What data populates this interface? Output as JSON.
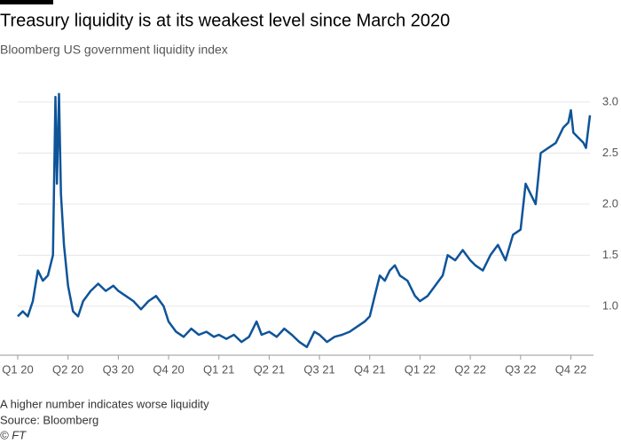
{
  "chart_data": {
    "type": "line",
    "title": "Treasury liquidity is at its weakest level since March 2020",
    "subtitle": "Bloomberg US government liquidity index",
    "note": "A higher number indicates worse liquidity",
    "source": "Source: Bloomberg",
    "credit": "© FT",
    "xlim": [
      0,
      11.45
    ],
    "xticks": [
      {
        "value": 0,
        "label": "Q1 20"
      },
      {
        "value": 1,
        "label": "Q2 20"
      },
      {
        "value": 2,
        "label": "Q3 20"
      },
      {
        "value": 3,
        "label": "Q4 20"
      },
      {
        "value": 4,
        "label": "Q1 21"
      },
      {
        "value": 5,
        "label": "Q2 21"
      },
      {
        "value": 6,
        "label": "Q3 21"
      },
      {
        "value": 7,
        "label": "Q4 21"
      },
      {
        "value": 8,
        "label": "Q1 22"
      },
      {
        "value": 9,
        "label": "Q2 22"
      },
      {
        "value": 10,
        "label": "Q3 22"
      },
      {
        "value": 11,
        "label": "Q4 22"
      }
    ],
    "ylim": [
      0.52,
      3.26
    ],
    "yticks": [
      {
        "value": 1,
        "label": "1.0"
      },
      1.5,
      {
        "value": 2,
        "label": "2.0"
      },
      2.5,
      {
        "value": 3,
        "label": "3.0"
      }
    ],
    "grid": true,
    "series": [
      {
        "color": "#0f5499",
        "x": [
          0,
          0.1,
          0.2,
          0.3,
          0.4,
          0.5,
          0.6,
          0.7,
          0.75,
          0.78,
          0.82,
          0.86,
          0.92,
          1.0,
          1.1,
          1.2,
          1.3,
          1.45,
          1.6,
          1.75,
          1.9,
          2.0,
          2.15,
          2.3,
          2.45,
          2.6,
          2.75,
          2.9,
          3.0,
          3.15,
          3.3,
          3.45,
          3.6,
          3.75,
          3.9,
          4.0,
          4.15,
          4.3,
          4.45,
          4.6,
          4.75,
          4.85,
          5.0,
          5.15,
          5.3,
          5.45,
          5.6,
          5.75,
          5.9,
          6.0,
          6.15,
          6.3,
          6.45,
          6.6,
          6.75,
          6.9,
          7.0,
          7.1,
          7.2,
          7.3,
          7.4,
          7.5,
          7.6,
          7.75,
          7.9,
          8.0,
          8.15,
          8.3,
          8.45,
          8.55,
          8.7,
          8.85,
          9.0,
          9.1,
          9.25,
          9.4,
          9.55,
          9.7,
          9.85,
          10.0,
          10.1,
          10.2,
          10.3,
          10.4,
          10.55,
          10.7,
          10.85,
          10.95,
          11.0,
          11.05,
          11.15,
          11.25,
          11.3,
          11.38
        ],
        "values": [
          0.9,
          0.95,
          0.9,
          1.05,
          1.35,
          1.25,
          1.3,
          1.5,
          3.05,
          2.2,
          3.08,
          2.1,
          1.6,
          1.2,
          0.95,
          0.9,
          1.05,
          1.15,
          1.22,
          1.15,
          1.2,
          1.15,
          1.1,
          1.05,
          0.97,
          1.05,
          1.1,
          1.0,
          0.85,
          0.75,
          0.7,
          0.78,
          0.72,
          0.75,
          0.7,
          0.72,
          0.68,
          0.72,
          0.65,
          0.7,
          0.85,
          0.72,
          0.75,
          0.7,
          0.78,
          0.72,
          0.65,
          0.6,
          0.75,
          0.72,
          0.65,
          0.7,
          0.72,
          0.75,
          0.8,
          0.85,
          0.9,
          1.1,
          1.3,
          1.25,
          1.35,
          1.4,
          1.3,
          1.25,
          1.1,
          1.05,
          1.1,
          1.2,
          1.3,
          1.5,
          1.45,
          1.55,
          1.45,
          1.4,
          1.35,
          1.5,
          1.6,
          1.45,
          1.7,
          1.75,
          2.2,
          2.1,
          2.0,
          2.5,
          2.55,
          2.6,
          2.75,
          2.8,
          2.92,
          2.7,
          2.65,
          2.6,
          2.55,
          2.87
        ]
      }
    ]
  }
}
